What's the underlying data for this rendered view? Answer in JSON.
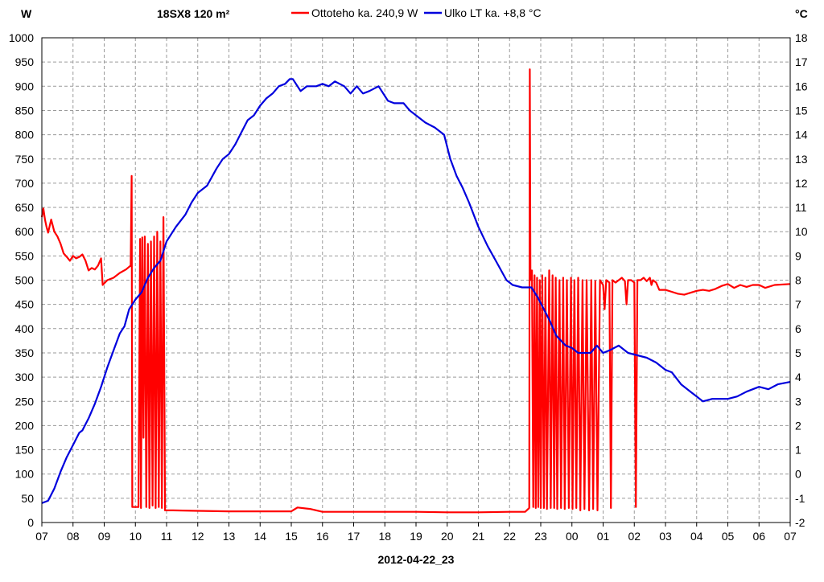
{
  "chart_data": {
    "type": "line",
    "title": "18SX8 120 m²",
    "xlabel": "2012-04-22_23",
    "left_axis_unit": "W",
    "right_axis_unit": "°C",
    "x_ticks": [
      "07",
      "08",
      "09",
      "10",
      "11",
      "12",
      "13",
      "14",
      "15",
      "16",
      "17",
      "18",
      "19",
      "20",
      "21",
      "22",
      "23",
      "00",
      "01",
      "02",
      "03",
      "04",
      "05",
      "06",
      "07"
    ],
    "y_left_range": [
      0,
      1000
    ],
    "y_left_ticks": [
      0,
      50,
      100,
      150,
      200,
      250,
      300,
      350,
      400,
      450,
      500,
      550,
      600,
      650,
      700,
      750,
      800,
      850,
      900,
      950,
      1000
    ],
    "y_right_range": [
      -2,
      18
    ],
    "y_right_ticks": [
      -2,
      -1,
      0,
      1,
      2,
      3,
      4,
      5,
      6,
      7,
      8,
      9,
      10,
      11,
      12,
      13,
      14,
      15,
      16,
      17,
      18
    ],
    "grid": true,
    "legend_position": "top",
    "series": [
      {
        "name": "Ottoteho ka. 240,9 W",
        "axis": "left",
        "color": "#ff0000",
        "points": [
          [
            0.0,
            630
          ],
          [
            0.05,
            648
          ],
          [
            0.1,
            625
          ],
          [
            0.15,
            610
          ],
          [
            0.2,
            598
          ],
          [
            0.3,
            625
          ],
          [
            0.4,
            600
          ],
          [
            0.5,
            590
          ],
          [
            0.6,
            575
          ],
          [
            0.7,
            555
          ],
          [
            0.8,
            548
          ],
          [
            0.9,
            540
          ],
          [
            1.0,
            550
          ],
          [
            1.1,
            545
          ],
          [
            1.2,
            548
          ],
          [
            1.3,
            553
          ],
          [
            1.4,
            540
          ],
          [
            1.5,
            520
          ],
          [
            1.6,
            525
          ],
          [
            1.7,
            522
          ],
          [
            1.8,
            530
          ],
          [
            1.9,
            545
          ],
          [
            1.95,
            490
          ],
          [
            2.1,
            500
          ],
          [
            2.3,
            505
          ],
          [
            2.5,
            515
          ],
          [
            2.7,
            522
          ],
          [
            2.85,
            530
          ],
          [
            2.88,
            715
          ],
          [
            2.9,
            32
          ],
          [
            3.1,
            32
          ],
          [
            3.15,
            585
          ],
          [
            3.18,
            30
          ],
          [
            3.22,
            588
          ],
          [
            3.26,
            175
          ],
          [
            3.3,
            590
          ],
          [
            3.35,
            32
          ],
          [
            3.4,
            575
          ],
          [
            3.45,
            30
          ],
          [
            3.5,
            580
          ],
          [
            3.55,
            35
          ],
          [
            3.6,
            590
          ],
          [
            3.65,
            30
          ],
          [
            3.7,
            600
          ],
          [
            3.75,
            32
          ],
          [
            3.8,
            580
          ],
          [
            3.85,
            30
          ],
          [
            3.9,
            630
          ],
          [
            3.95,
            25
          ],
          [
            4.2,
            25
          ],
          [
            5.0,
            24
          ],
          [
            6.0,
            23
          ],
          [
            7.0,
            23
          ],
          [
            8.0,
            23
          ],
          [
            8.2,
            31
          ],
          [
            8.6,
            28
          ],
          [
            9.0,
            22
          ],
          [
            10.0,
            22
          ],
          [
            11.0,
            22
          ],
          [
            12.0,
            22
          ],
          [
            13.0,
            21
          ],
          [
            14.0,
            21
          ],
          [
            15.0,
            22
          ],
          [
            15.5,
            22
          ],
          [
            15.6,
            28
          ],
          [
            15.63,
            30
          ],
          [
            15.65,
            935
          ],
          [
            15.67,
            500
          ],
          [
            15.72,
            520
          ],
          [
            15.76,
            32
          ],
          [
            15.8,
            510
          ],
          [
            15.84,
            30
          ],
          [
            15.88,
            505
          ],
          [
            15.92,
            32
          ],
          [
            15.97,
            500
          ],
          [
            16.0,
            30
          ],
          [
            16.05,
            510
          ],
          [
            16.1,
            30
          ],
          [
            16.15,
            505
          ],
          [
            16.2,
            28
          ],
          [
            16.27,
            520
          ],
          [
            16.32,
            30
          ],
          [
            16.38,
            510
          ],
          [
            16.43,
            30
          ],
          [
            16.48,
            505
          ],
          [
            16.53,
            28
          ],
          [
            16.6,
            500
          ],
          [
            16.65,
            30
          ],
          [
            16.72,
            505
          ],
          [
            16.77,
            28
          ],
          [
            16.84,
            500
          ],
          [
            16.9,
            30
          ],
          [
            16.97,
            505
          ],
          [
            17.02,
            28
          ],
          [
            17.08,
            500
          ],
          [
            17.14,
            30
          ],
          [
            17.2,
            505
          ],
          [
            17.27,
            25
          ],
          [
            17.34,
            500
          ],
          [
            17.4,
            28
          ],
          [
            17.47,
            500
          ],
          [
            17.55,
            25
          ],
          [
            17.62,
            500
          ],
          [
            17.68,
            28
          ],
          [
            17.75,
            498
          ],
          [
            17.82,
            25
          ],
          [
            17.9,
            500
          ],
          [
            18.0,
            490
          ],
          [
            18.05,
            440
          ],
          [
            18.1,
            500
          ],
          [
            18.2,
            495
          ],
          [
            18.25,
            30
          ],
          [
            18.3,
            500
          ],
          [
            18.4,
            495
          ],
          [
            18.5,
            500
          ],
          [
            18.6,
            505
          ],
          [
            18.7,
            498
          ],
          [
            18.75,
            450
          ],
          [
            18.8,
            500
          ],
          [
            18.9,
            500
          ],
          [
            19.0,
            495
          ],
          [
            19.05,
            32
          ],
          [
            19.1,
            500
          ],
          [
            19.2,
            500
          ],
          [
            19.3,
            505
          ],
          [
            19.4,
            498
          ],
          [
            19.5,
            505
          ],
          [
            19.55,
            490
          ],
          [
            19.6,
            500
          ],
          [
            19.7,
            495
          ],
          [
            19.8,
            480
          ],
          [
            20.0,
            480
          ],
          [
            20.2,
            476
          ],
          [
            20.4,
            472
          ],
          [
            20.6,
            470
          ],
          [
            20.8,
            474
          ],
          [
            21.0,
            478
          ],
          [
            21.2,
            480
          ],
          [
            21.4,
            478
          ],
          [
            21.6,
            482
          ],
          [
            21.8,
            488
          ],
          [
            22.0,
            492
          ],
          [
            22.2,
            484
          ],
          [
            22.4,
            490
          ],
          [
            22.6,
            486
          ],
          [
            22.8,
            490
          ],
          [
            23.0,
            490
          ],
          [
            23.2,
            484
          ],
          [
            23.5,
            490
          ],
          [
            24.0,
            492
          ]
        ]
      },
      {
        "name": "Ulko LT ka. +8,8 °C",
        "axis": "right",
        "color": "#0000dd",
        "points": [
          [
            0.0,
            -1.2
          ],
          [
            0.2,
            -1.1
          ],
          [
            0.4,
            -0.6
          ],
          [
            0.6,
            0.1
          ],
          [
            0.8,
            0.7
          ],
          [
            1.0,
            1.2
          ],
          [
            1.2,
            1.7
          ],
          [
            1.3,
            1.8
          ],
          [
            1.5,
            2.3
          ],
          [
            1.7,
            2.9
          ],
          [
            1.9,
            3.6
          ],
          [
            2.1,
            4.4
          ],
          [
            2.3,
            5.1
          ],
          [
            2.5,
            5.8
          ],
          [
            2.65,
            6.1
          ],
          [
            2.8,
            6.8
          ],
          [
            3.0,
            7.2
          ],
          [
            3.2,
            7.5
          ],
          [
            3.4,
            8.1
          ],
          [
            3.6,
            8.5
          ],
          [
            3.8,
            8.8
          ],
          [
            4.0,
            9.6
          ],
          [
            4.3,
            10.2
          ],
          [
            4.6,
            10.7
          ],
          [
            4.8,
            11.2
          ],
          [
            5.0,
            11.6
          ],
          [
            5.3,
            11.9
          ],
          [
            5.6,
            12.6
          ],
          [
            5.8,
            13.0
          ],
          [
            6.0,
            13.2
          ],
          [
            6.2,
            13.6
          ],
          [
            6.4,
            14.1
          ],
          [
            6.6,
            14.6
          ],
          [
            6.8,
            14.8
          ],
          [
            7.0,
            15.2
          ],
          [
            7.2,
            15.5
          ],
          [
            7.4,
            15.7
          ],
          [
            7.6,
            16.0
          ],
          [
            7.8,
            16.1
          ],
          [
            7.95,
            16.3
          ],
          [
            8.05,
            16.3
          ],
          [
            8.3,
            15.8
          ],
          [
            8.5,
            16.0
          ],
          [
            8.8,
            16.0
          ],
          [
            9.0,
            16.1
          ],
          [
            9.2,
            16.0
          ],
          [
            9.4,
            16.2
          ],
          [
            9.7,
            16.0
          ],
          [
            9.9,
            15.7
          ],
          [
            10.1,
            16.0
          ],
          [
            10.3,
            15.7
          ],
          [
            10.5,
            15.8
          ],
          [
            10.8,
            16.0
          ],
          [
            11.1,
            15.4
          ],
          [
            11.3,
            15.3
          ],
          [
            11.6,
            15.3
          ],
          [
            11.8,
            15.0
          ],
          [
            12.0,
            14.8
          ],
          [
            12.3,
            14.5
          ],
          [
            12.6,
            14.3
          ],
          [
            12.9,
            14.0
          ],
          [
            13.1,
            13.0
          ],
          [
            13.3,
            12.3
          ],
          [
            13.5,
            11.8
          ],
          [
            13.7,
            11.2
          ],
          [
            14.0,
            10.2
          ],
          [
            14.3,
            9.4
          ],
          [
            14.6,
            8.7
          ],
          [
            14.9,
            8.0
          ],
          [
            15.1,
            7.8
          ],
          [
            15.4,
            7.7
          ],
          [
            15.7,
            7.7
          ],
          [
            15.9,
            7.3
          ],
          [
            16.1,
            6.8
          ],
          [
            16.3,
            6.3
          ],
          [
            16.5,
            5.7
          ],
          [
            16.8,
            5.3
          ],
          [
            17.0,
            5.2
          ],
          [
            17.2,
            5.0
          ],
          [
            17.4,
            5.0
          ],
          [
            17.6,
            5.0
          ],
          [
            17.8,
            5.3
          ],
          [
            18.0,
            5.0
          ],
          [
            18.2,
            5.1
          ],
          [
            18.5,
            5.3
          ],
          [
            18.8,
            5.0
          ],
          [
            19.1,
            4.9
          ],
          [
            19.4,
            4.8
          ],
          [
            19.7,
            4.6
          ],
          [
            20.0,
            4.3
          ],
          [
            20.2,
            4.2
          ],
          [
            20.5,
            3.7
          ],
          [
            20.8,
            3.4
          ],
          [
            21.0,
            3.2
          ],
          [
            21.2,
            3.0
          ],
          [
            21.5,
            3.1
          ],
          [
            21.8,
            3.1
          ],
          [
            22.0,
            3.1
          ],
          [
            22.3,
            3.2
          ],
          [
            22.6,
            3.4
          ],
          [
            22.8,
            3.5
          ],
          [
            23.0,
            3.6
          ],
          [
            23.3,
            3.5
          ],
          [
            23.6,
            3.7
          ],
          [
            24.0,
            3.8
          ]
        ]
      }
    ]
  }
}
